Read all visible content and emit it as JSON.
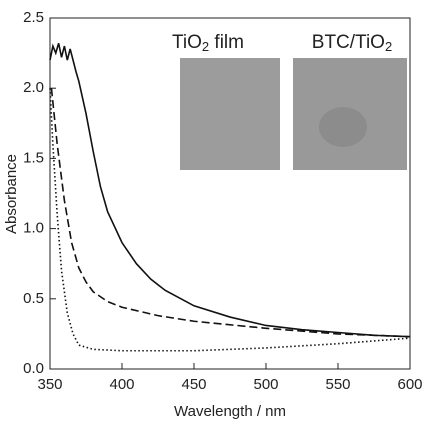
{
  "chart_data": {
    "type": "line",
    "xlabel": "Wavelength / nm",
    "ylabel": "Absorbance",
    "xlim": [
      350,
      600
    ],
    "xticks": [
      350,
      400,
      450,
      500,
      550,
      600
    ],
    "ylim": [
      0,
      2.5
    ],
    "yticks": [
      {
        "value": 0,
        "label": "0.0"
      },
      {
        "value": 0.5,
        "label": "0.5"
      },
      {
        "value": 1,
        "label": "1.0"
      },
      {
        "value": 1.5,
        "label": "1.5"
      },
      {
        "value": 2,
        "label": "2.0"
      },
      {
        "value": 2.5,
        "label": "2.5"
      }
    ],
    "insets": [
      [
        "TiO",
        "2",
        " film"
      ],
      [
        "BTC/TiO",
        "2"
      ]
    ],
    "series": [
      {
        "color": "#111",
        "dash": "solid",
        "x": [
          350,
          352,
          354,
          356,
          358,
          360,
          362,
          364,
          366,
          368,
          370,
          375,
          380,
          385,
          390,
          400,
          410,
          420,
          430,
          450,
          475,
          500,
          525,
          550,
          575,
          600
        ],
        "values": [
          2.2,
          2.3,
          2.25,
          2.32,
          2.22,
          2.3,
          2.2,
          2.28,
          2.2,
          2.12,
          2.05,
          1.82,
          1.55,
          1.3,
          1.12,
          0.9,
          0.75,
          0.64,
          0.56,
          0.45,
          0.37,
          0.31,
          0.28,
          0.26,
          0.24,
          0.23
        ]
      },
      {
        "color": "#111",
        "dash": "dashed",
        "x": [
          351,
          353,
          355,
          360,
          365,
          370,
          375,
          380,
          390,
          400,
          425,
          450,
          500,
          550,
          600
        ],
        "values": [
          2.0,
          1.8,
          1.6,
          1.2,
          0.9,
          0.72,
          0.62,
          0.55,
          0.48,
          0.44,
          0.38,
          0.34,
          0.29,
          0.25,
          0.23
        ]
      },
      {
        "color": "#111",
        "dash": "dotted",
        "x": [
          350,
          352,
          355,
          358,
          362,
          366,
          370,
          380,
          400,
          450,
          500,
          550,
          600
        ],
        "values": [
          2.0,
          1.6,
          1.1,
          0.7,
          0.4,
          0.25,
          0.17,
          0.14,
          0.13,
          0.13,
          0.15,
          0.18,
          0.22
        ]
      }
    ]
  }
}
